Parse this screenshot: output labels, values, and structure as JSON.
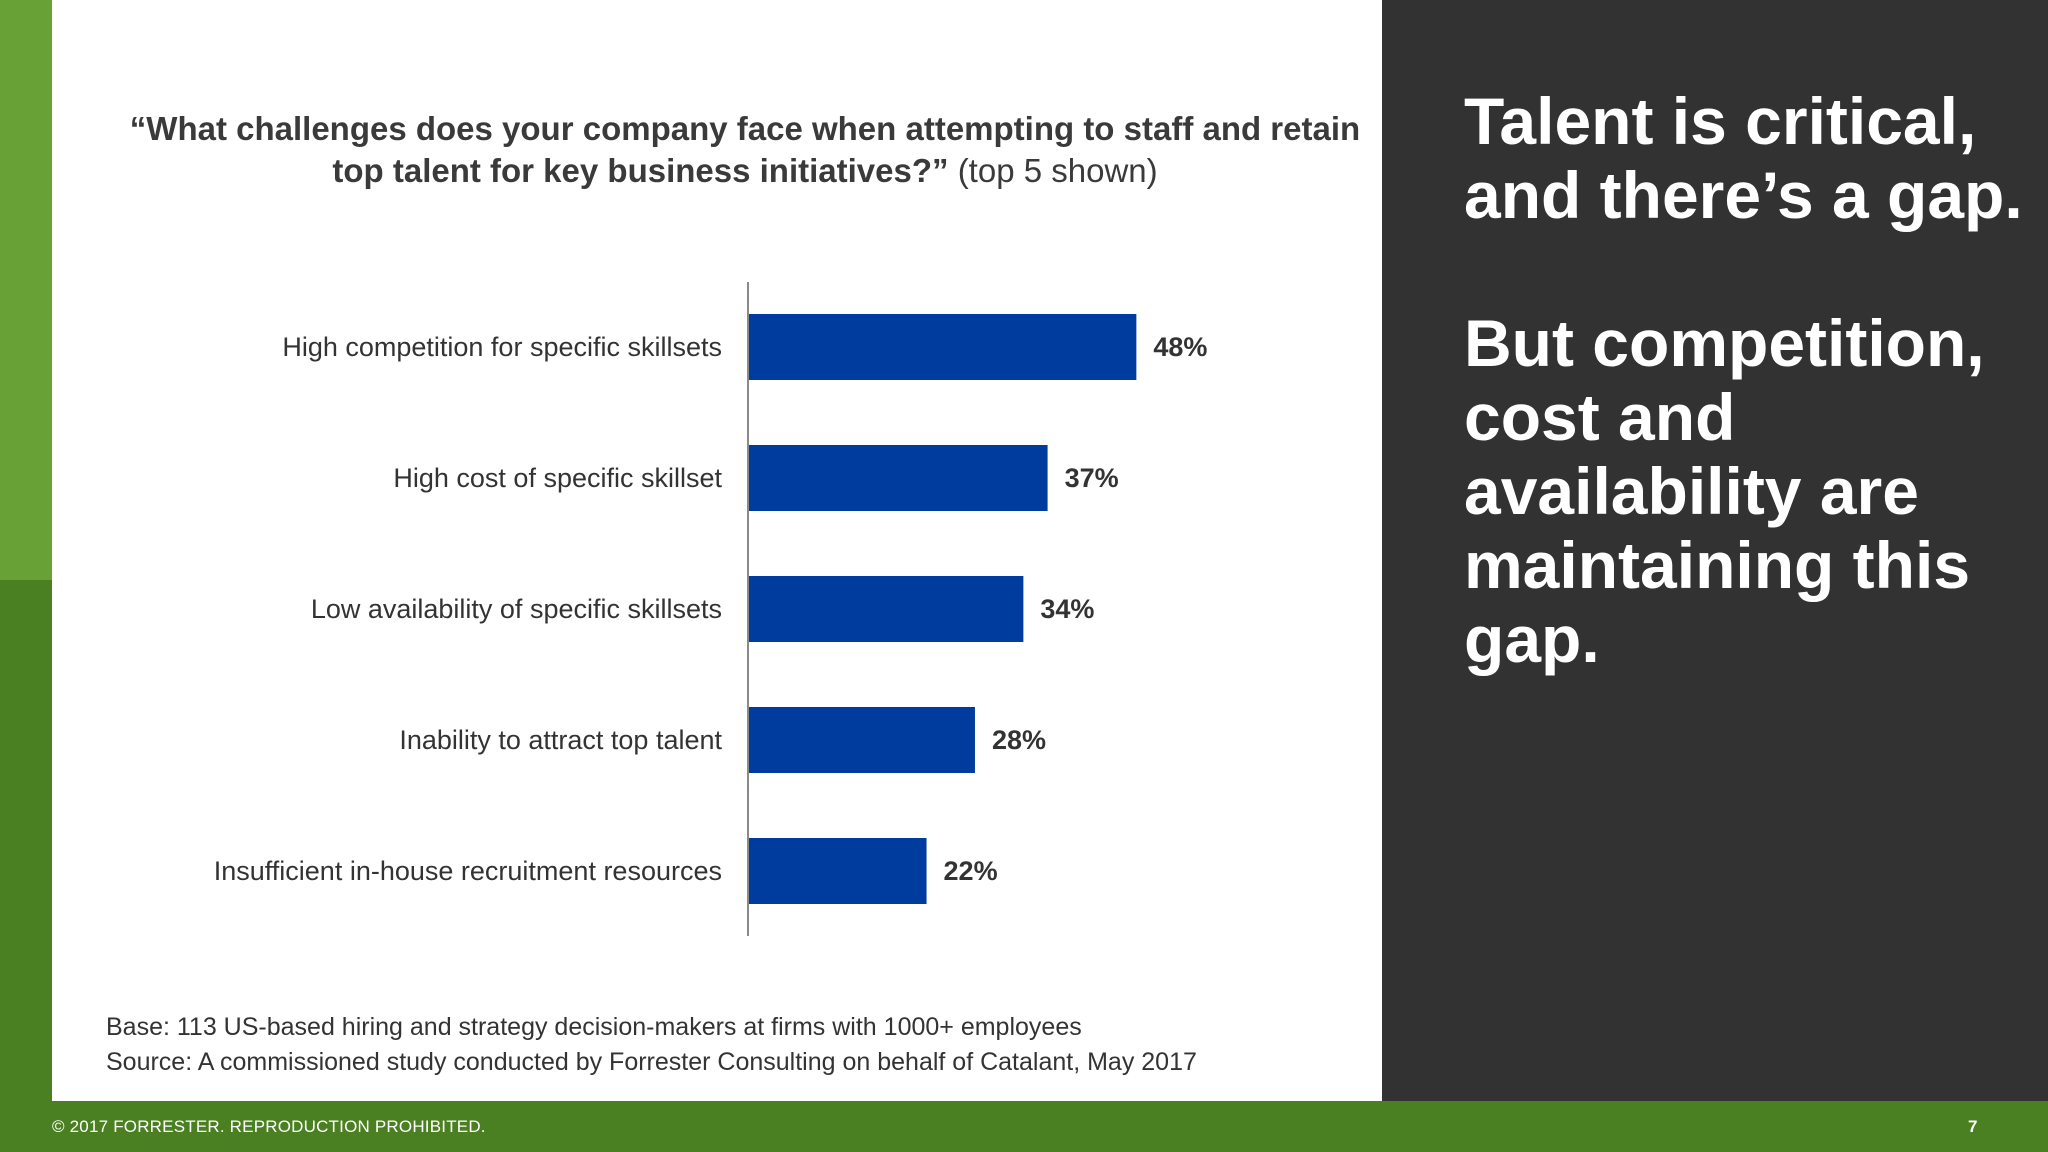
{
  "question": {
    "bold": "“What challenges does your company face when attempting to staff and retain top talent for key business initiatives?”",
    "light": "(top 5 shown)"
  },
  "chart_data": {
    "type": "bar",
    "orientation": "horizontal",
    "categories": [
      "High competition for specific skillsets",
      "High cost of specific skillset",
      "Low availability of specific skillsets",
      "Inability to attract top talent",
      "Insufficient in-house recruitment resources"
    ],
    "values": [
      48,
      37,
      34,
      28,
      22
    ],
    "data_labels": [
      "48%",
      "37%",
      "34%",
      "28%",
      "22%"
    ],
    "xlim": [
      0,
      100
    ],
    "grid": false,
    "bar_color": "#003c9d"
  },
  "notes": {
    "base": "Base: 113 US-based hiring and strategy decision-makers at firms with 1000+ employees",
    "source": "Source: A commissioned study conducted by Forrester Consulting on behalf of Catalant, May 2017"
  },
  "side": {
    "para1": "Talent is critical, and there’s a gap.",
    "para2": "But competition, cost and availability are maintaining this gap."
  },
  "footer": {
    "copyright": "© 2017 FORRESTER. REPRODUCTION PROHIBITED.",
    "page": "7"
  },
  "colors": {
    "green_dark": "#4a8022",
    "green_light": "#68a236",
    "panel_dark": "#323232",
    "bar": "#003c9d"
  }
}
